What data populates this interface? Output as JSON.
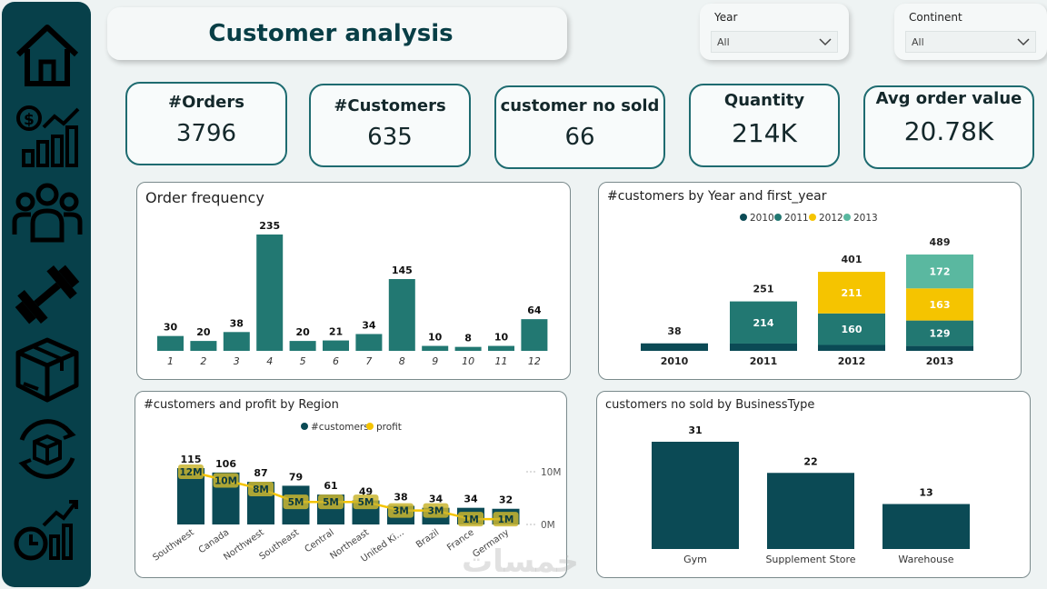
{
  "title": "Customer analysis",
  "slicers": {
    "year": {
      "label": "Year",
      "value": "All"
    },
    "continent": {
      "label": "Continent",
      "value": "All"
    }
  },
  "kpis": [
    {
      "label": "#Orders",
      "value": "3796"
    },
    {
      "label": "#Customers",
      "value": "635"
    },
    {
      "label": "customer no sold",
      "value": "66"
    },
    {
      "label": "Quantity",
      "value": "214K"
    },
    {
      "label": "Avg order value",
      "value": "20.78K"
    }
  ],
  "sidebar": {
    "icons": [
      "home-icon",
      "sales-chart-icon",
      "customers-icon",
      "fitness-dumbbell-icon",
      "product-box-icon",
      "inventory-cycle-icon",
      "time-analysis-icon"
    ]
  },
  "colors": {
    "dark_teal": "#0b4a55",
    "teal": "#227872",
    "yellow": "#f5c400",
    "light_teal": "#5ab8a0"
  },
  "watermark": "خمسات",
  "chart_data": [
    {
      "type": "bar",
      "title": "Order frequency",
      "categories": [
        "1",
        "2",
        "3",
        "4",
        "5",
        "6",
        "7",
        "8",
        "9",
        "10",
        "11",
        "12"
      ],
      "values": [
        30,
        20,
        38,
        235,
        20,
        21,
        34,
        145,
        10,
        8,
        10,
        64
      ],
      "color": "#227872"
    },
    {
      "type": "bar",
      "title": "#customers by Year and first_year",
      "categories": [
        "2010",
        "2011",
        "2012",
        "2013"
      ],
      "series": [
        {
          "name": "2010",
          "values": [
            38,
            37,
            30,
            25
          ],
          "color": "#0b4a55"
        },
        {
          "name": "2011",
          "values": [
            0,
            214,
            160,
            129
          ],
          "color": "#227872"
        },
        {
          "name": "2012",
          "values": [
            0,
            0,
            211,
            163
          ],
          "color": "#f5c400"
        },
        {
          "name": "2013",
          "values": [
            0,
            0,
            0,
            172
          ],
          "color": "#5ab8a0"
        }
      ],
      "totals": [
        38,
        251,
        401,
        489
      ],
      "segment_labels": [
        [
          "38",
          "",
          "",
          ""
        ],
        [
          "",
          "214",
          "",
          ""
        ],
        [
          "",
          "160",
          "211",
          ""
        ],
        [
          "",
          "129",
          "163",
          "172"
        ]
      ],
      "stacked": true,
      "legend": "top"
    },
    {
      "type": "bar",
      "title": "#customers and profit by Region",
      "categories": [
        "Southwest",
        "Canada",
        "Northwest",
        "Southeast",
        "Central",
        "Northeast",
        "United Ki...",
        "Brazil",
        "France",
        "Germany"
      ],
      "series": [
        {
          "name": "#customers",
          "values": [
            115,
            106,
            87,
            79,
            61,
            49,
            38,
            34,
            34,
            32
          ],
          "color": "#0b4a55"
        },
        {
          "name": "profit",
          "type": "line",
          "values": [
            12,
            10,
            8,
            5,
            5,
            5,
            3,
            3,
            1,
            1
          ],
          "labels": [
            "12M",
            "10M",
            "8M",
            "5M",
            "5M",
            "5M",
            "3M",
            "3M",
            "1M",
            "1M"
          ],
          "color": "#f5c400"
        }
      ],
      "secondary_axis": {
        "ticks": [
          "10M",
          "0M"
        ]
      },
      "legend": "top"
    },
    {
      "type": "bar",
      "title": "customers no sold by BusinessType",
      "categories": [
        "Gym",
        "Supplement Store",
        "Warehouse"
      ],
      "values": [
        31,
        22,
        13
      ],
      "color": "#0b4a55"
    }
  ]
}
